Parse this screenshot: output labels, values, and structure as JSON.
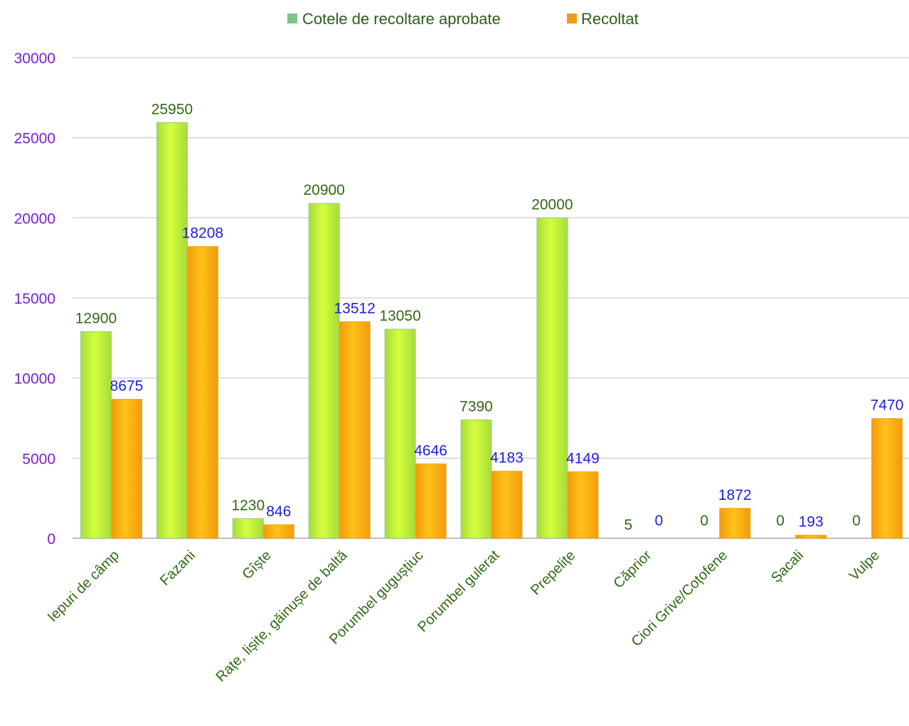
{
  "chart_data": {
    "type": "bar",
    "title": "",
    "xlabel": "",
    "ylabel": "",
    "ylim": [
      0,
      30000
    ],
    "yticks": [
      0,
      5000,
      10000,
      15000,
      20000,
      25000,
      30000
    ],
    "grid": true,
    "legend_position": "top-center",
    "categories": [
      "Iepuri de câmp",
      "Fazani",
      "Gîște",
      "Rațe, lișițe, găinușe de baltă",
      "Porumbel  gugușțiuc",
      "Porumbel gulerat",
      "Prepelițe",
      "Căprior",
      "Ciori Grive/Coțofene",
      "Șacali",
      "Vulpe"
    ],
    "series": [
      {
        "name": "Cotele de recoltare aprobate",
        "color": "#c6f231",
        "legend_color": "#7ec48a",
        "label_color": "#2e6b12",
        "values": [
          12900,
          25950,
          1230,
          20900,
          13050,
          7390,
          20000,
          5,
          0,
          0,
          0
        ]
      },
      {
        "name": "Recoltat",
        "color": "#fbb40e",
        "legend_color": "#f39a12",
        "label_color": "#1f1fe0",
        "values": [
          8675,
          18208,
          846,
          13512,
          4646,
          4183,
          4149,
          0,
          1872,
          193,
          7470
        ]
      }
    ]
  }
}
